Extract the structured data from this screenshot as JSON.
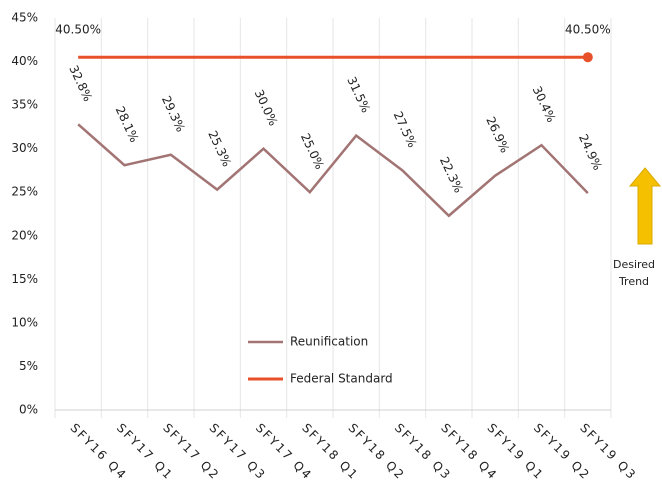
{
  "chart_data": {
    "type": "line",
    "categories": [
      "SFY16 Q4",
      "SFY17 Q1",
      "SFY17 Q2",
      "SFY17 Q3",
      "SFY17 Q4",
      "SFY18 Q1",
      "SFY18 Q2",
      "SFY18 Q3",
      "SFY18 Q4",
      "SFY19 Q1",
      "SFY19 Q2",
      "SFY19 Q3"
    ],
    "series": [
      {
        "name": "Reunification",
        "color": "#a27474",
        "values": [
          32.8,
          28.1,
          29.3,
          25.3,
          30.0,
          25.0,
          31.5,
          27.5,
          22.3,
          26.9,
          30.4,
          24.9
        ],
        "value_labels": [
          "32.8%",
          "28.1%",
          "29.3%",
          "25.3%",
          "30.0%",
          "25.0%",
          "31.5%",
          "27.5%",
          "22.3%",
          "26.9%",
          "30.4%",
          "24.9%"
        ]
      },
      {
        "name": "Federal Standard",
        "color": "#e8502a",
        "markers": "last",
        "values": [
          40.5,
          40.5,
          40.5,
          40.5,
          40.5,
          40.5,
          40.5,
          40.5,
          40.5,
          40.5,
          40.5,
          40.5
        ],
        "value_labels": [
          "40.50%",
          null,
          null,
          null,
          null,
          null,
          null,
          null,
          null,
          null,
          null,
          "40.50%"
        ]
      }
    ],
    "ylim": [
      0,
      45
    ],
    "yticks": [
      {
        "value": 0,
        "label": "0%"
      },
      {
        "value": 5,
        "label": "5%"
      },
      {
        "value": 10,
        "label": "10%"
      },
      {
        "value": 15,
        "label": "15%"
      },
      {
        "value": 20,
        "label": "20%"
      },
      {
        "value": 25,
        "label": "25%"
      },
      {
        "value": 30,
        "label": "30%"
      },
      {
        "value": 35,
        "label": "35%"
      },
      {
        "value": 40,
        "label": "40%"
      },
      {
        "value": 45,
        "label": "45%"
      }
    ],
    "annotation": "Desired Trend"
  }
}
